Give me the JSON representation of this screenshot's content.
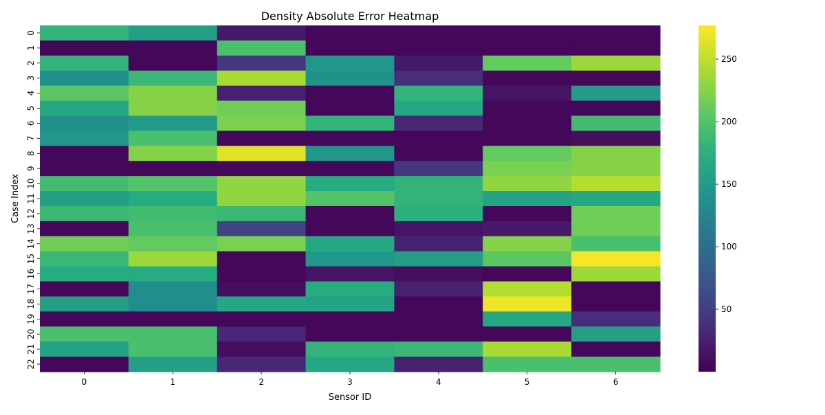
{
  "chart_data": {
    "type": "heatmap",
    "title": "Density Absolute Error Heatmap",
    "xlabel": "Sensor ID",
    "ylabel": "Case Index",
    "x_categories": [
      "0",
      "1",
      "2",
      "3",
      "4",
      "5",
      "6"
    ],
    "y_categories": [
      "0",
      "1",
      "2",
      "3",
      "4",
      "5",
      "6",
      "7",
      "8",
      "9",
      "10",
      "11",
      "12",
      "13",
      "14",
      "15",
      "16",
      "17",
      "18",
      "19",
      "20",
      "21",
      "22"
    ],
    "values": [
      [
        180,
        155,
        20,
        5,
        5,
        5,
        5
      ],
      [
        5,
        5,
        195,
        5,
        5,
        5,
        5
      ],
      [
        180,
        5,
        45,
        145,
        20,
        210,
        235
      ],
      [
        140,
        185,
        240,
        140,
        35,
        5,
        5
      ],
      [
        205,
        225,
        25,
        5,
        180,
        15,
        150
      ],
      [
        165,
        225,
        215,
        5,
        165,
        5,
        5
      ],
      [
        135,
        150,
        220,
        180,
        30,
        5,
        190
      ],
      [
        145,
        195,
        5,
        5,
        5,
        5,
        10
      ],
      [
        5,
        225,
        265,
        145,
        5,
        210,
        225
      ],
      [
        5,
        5,
        5,
        5,
        45,
        220,
        225
      ],
      [
        190,
        200,
        230,
        170,
        180,
        230,
        245
      ],
      [
        155,
        170,
        230,
        200,
        180,
        160,
        165
      ],
      [
        185,
        190,
        185,
        5,
        175,
        5,
        215
      ],
      [
        5,
        195,
        55,
        5,
        15,
        20,
        215
      ],
      [
        215,
        210,
        220,
        165,
        25,
        225,
        195
      ],
      [
        185,
        235,
        5,
        145,
        155,
        205,
        275
      ],
      [
        170,
        170,
        5,
        15,
        10,
        5,
        235
      ],
      [
        5,
        135,
        10,
        170,
        25,
        245,
        5
      ],
      [
        155,
        135,
        165,
        160,
        5,
        270,
        5
      ],
      [
        5,
        5,
        5,
        5,
        5,
        165,
        35
      ],
      [
        195,
        195,
        30,
        5,
        5,
        5,
        155
      ],
      [
        160,
        195,
        10,
        180,
        185,
        240,
        5
      ],
      [
        5,
        155,
        30,
        165,
        25,
        195,
        195
      ]
    ],
    "vmin": 0,
    "vmax": 277,
    "colormap": "viridis",
    "colorbar_ticks": [
      "50",
      "100",
      "150",
      "200",
      "250"
    ],
    "colorbar_tick_values": [
      50,
      100,
      150,
      200,
      250
    ]
  }
}
